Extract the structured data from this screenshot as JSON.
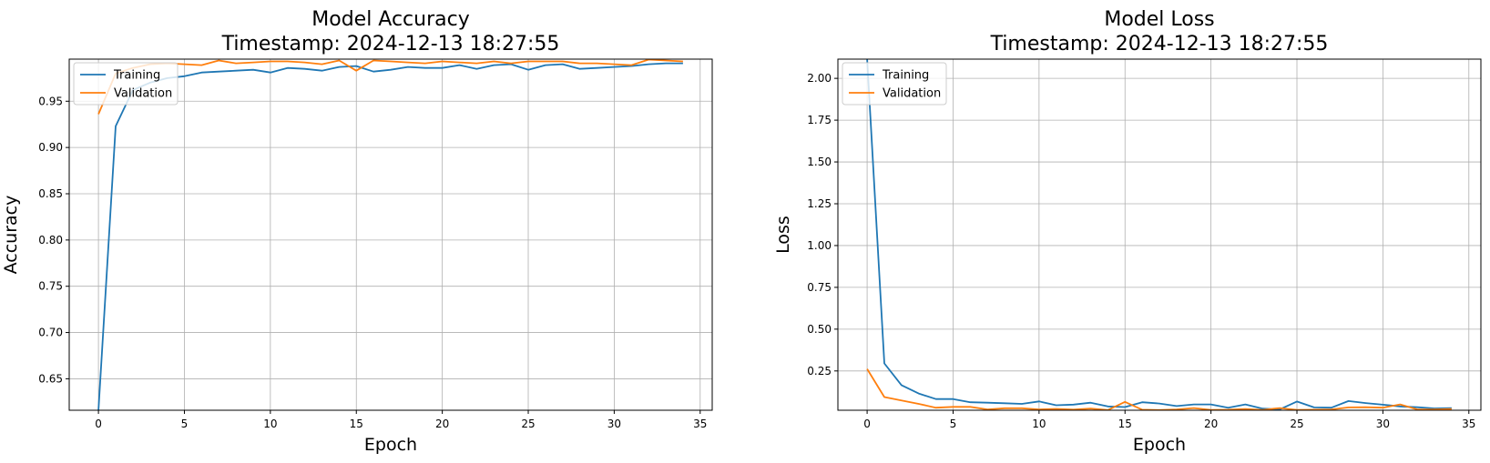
{
  "chart_data": [
    {
      "type": "line",
      "title": "Model Accuracy\nTimestamp: 2024-12-13 18:27:55",
      "xlabel": "Epoch",
      "ylabel": "Accuracy",
      "xlim": [
        -1.7,
        35.7
      ],
      "ylim": [
        0.616,
        0.9955
      ],
      "xticks": [
        0,
        5,
        10,
        15,
        20,
        25,
        30,
        35
      ],
      "yticks": [
        0.65,
        0.7,
        0.75,
        0.8,
        0.85,
        0.9,
        0.95
      ],
      "ytick_labels": [
        "0.65",
        "0.70",
        "0.75",
        "0.80",
        "0.85",
        "0.90",
        "0.95"
      ],
      "grid": true,
      "legend_position": "upper-left",
      "x": [
        0,
        1,
        2,
        3,
        4,
        5,
        6,
        7,
        8,
        9,
        10,
        11,
        12,
        13,
        14,
        15,
        16,
        17,
        18,
        19,
        20,
        21,
        22,
        23,
        24,
        25,
        26,
        27,
        28,
        29,
        30,
        31,
        32,
        33,
        34
      ],
      "series": [
        {
          "name": "Training",
          "color": "#1f77b4",
          "values": [
            0.616,
            0.923,
            0.962,
            0.97,
            0.975,
            0.977,
            0.981,
            0.982,
            0.983,
            0.984,
            0.981,
            0.986,
            0.985,
            0.983,
            0.987,
            0.988,
            0.982,
            0.984,
            0.987,
            0.986,
            0.986,
            0.989,
            0.985,
            0.989,
            0.99,
            0.984,
            0.989,
            0.99,
            0.985,
            0.986,
            0.987,
            0.988,
            0.99,
            0.991,
            0.991
          ]
        },
        {
          "name": "Validation",
          "color": "#ff7f0e",
          "values": [
            0.936,
            0.98,
            0.986,
            0.99,
            0.991,
            0.99,
            0.989,
            0.994,
            0.991,
            0.992,
            0.993,
            0.993,
            0.992,
            0.99,
            0.994,
            0.983,
            0.994,
            0.993,
            0.992,
            0.991,
            0.993,
            0.992,
            0.991,
            0.993,
            0.991,
            0.993,
            0.993,
            0.993,
            0.991,
            0.991,
            0.99,
            0.989,
            0.995,
            0.994,
            0.993
          ]
        }
      ]
    },
    {
      "type": "line",
      "title": "Model Loss\nTimestamp: 2024-12-13 18:27:55",
      "xlabel": "Epoch",
      "ylabel": "Loss",
      "xlim": [
        -1.7,
        35.7
      ],
      "ylim": [
        0.015,
        2.115
      ],
      "xticks": [
        0,
        5,
        10,
        15,
        20,
        25,
        30,
        35
      ],
      "yticks": [
        0.25,
        0.5,
        0.75,
        1.0,
        1.25,
        1.5,
        1.75,
        2.0
      ],
      "ytick_labels": [
        "0.25",
        "0.50",
        "0.75",
        "1.00",
        "1.25",
        "1.50",
        "1.75",
        "2.00"
      ],
      "grid": true,
      "legend_position": "upper-left",
      "x": [
        0,
        1,
        2,
        3,
        4,
        5,
        6,
        7,
        8,
        9,
        10,
        11,
        12,
        13,
        14,
        15,
        16,
        17,
        18,
        19,
        20,
        21,
        22,
        23,
        24,
        25,
        26,
        27,
        28,
        29,
        30,
        31,
        32,
        33,
        34
      ],
      "series": [
        {
          "name": "Training",
          "color": "#1f77b4",
          "values": [
            2.115,
            0.295,
            0.165,
            0.115,
            0.082,
            0.082,
            0.063,
            0.06,
            0.057,
            0.053,
            0.068,
            0.045,
            0.049,
            0.06,
            0.038,
            0.034,
            0.063,
            0.055,
            0.04,
            0.05,
            0.05,
            0.03,
            0.05,
            0.025,
            0.02,
            0.067,
            0.032,
            0.03,
            0.07,
            0.058,
            0.048,
            0.038,
            0.033,
            0.026,
            0.028
          ]
        },
        {
          "name": "Validation",
          "color": "#ff7f0e",
          "values": [
            0.262,
            0.094,
            0.074,
            0.053,
            0.03,
            0.035,
            0.035,
            0.02,
            0.027,
            0.027,
            0.02,
            0.023,
            0.019,
            0.025,
            0.016,
            0.065,
            0.018,
            0.016,
            0.02,
            0.028,
            0.017,
            0.018,
            0.022,
            0.017,
            0.028,
            0.017,
            0.018,
            0.02,
            0.032,
            0.033,
            0.03,
            0.05,
            0.02,
            0.02,
            0.022
          ]
        }
      ]
    }
  ]
}
